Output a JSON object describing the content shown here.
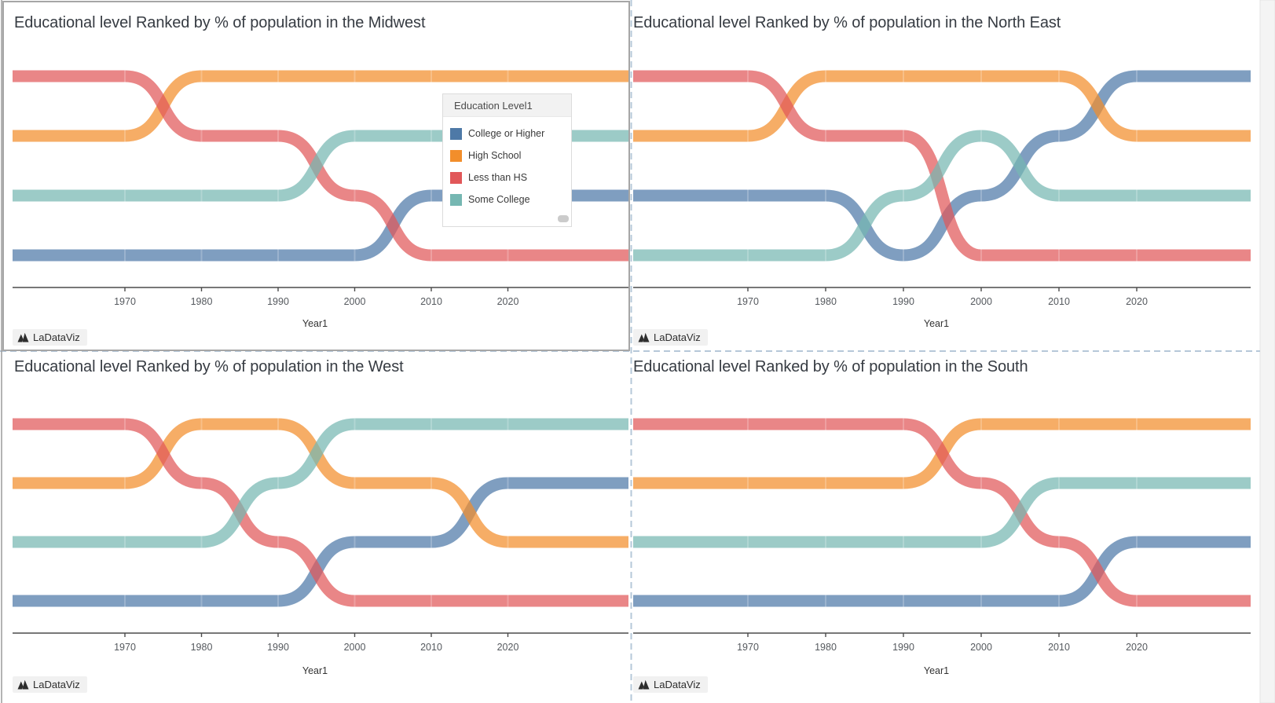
{
  "legend": {
    "title": "Education Level1",
    "items": [
      {
        "label": "College or Higher",
        "color": "#4e79a7"
      },
      {
        "label": "High School",
        "color": "#f28e2b"
      },
      {
        "label": "Less than HS",
        "color": "#e15759"
      },
      {
        "label": "Some College",
        "color": "#76b7b2"
      }
    ]
  },
  "chart_data": [
    {
      "type": "line",
      "variant": "bump-rank",
      "region": "Midwest",
      "title": "Educational level Ranked by % of population in the Midwest",
      "xlabel": "Year1",
      "watermark": "LaDataViz",
      "x": [
        1960,
        1970,
        1980,
        1990,
        2000,
        2010,
        2020,
        2030
      ],
      "x_ticks": [
        "1970",
        "1980",
        "1990",
        "2000",
        "2010",
        "2020"
      ],
      "y_encoding": "rank of % of population (1 = highest, plotted at top)",
      "ylim": [
        1,
        4
      ],
      "grid": false,
      "series": [
        {
          "name": "College or Higher",
          "color": "#4e79a7",
          "ranks": [
            4,
            4,
            4,
            4,
            4,
            3,
            3,
            3
          ]
        },
        {
          "name": "High School",
          "color": "#f28e2b",
          "ranks": [
            2,
            2,
            1,
            1,
            1,
            1,
            1,
            1
          ]
        },
        {
          "name": "Less than HS",
          "color": "#e15759",
          "ranks": [
            1,
            1,
            2,
            2,
            3,
            4,
            4,
            4
          ]
        },
        {
          "name": "Some College",
          "color": "#76b7b2",
          "ranks": [
            3,
            3,
            3,
            3,
            2,
            2,
            2,
            2
          ]
        }
      ],
      "legend_position": "overlay-right"
    },
    {
      "type": "line",
      "variant": "bump-rank",
      "region": "North East",
      "title": "Educational level Ranked by % of population in the North East",
      "xlabel": "Year1",
      "watermark": "LaDataViz",
      "x": [
        1960,
        1970,
        1980,
        1990,
        2000,
        2010,
        2020,
        2030
      ],
      "x_ticks": [
        "1970",
        "1980",
        "1990",
        "2000",
        "2010",
        "2020"
      ],
      "y_encoding": "rank of % of population (1 = highest, plotted at top)",
      "ylim": [
        1,
        4
      ],
      "grid": false,
      "series": [
        {
          "name": "College or Higher",
          "color": "#4e79a7",
          "ranks": [
            3,
            3,
            3,
            4,
            3,
            2,
            1,
            1
          ]
        },
        {
          "name": "High School",
          "color": "#f28e2b",
          "ranks": [
            2,
            2,
            1,
            1,
            1,
            1,
            2,
            2
          ]
        },
        {
          "name": "Less than HS",
          "color": "#e15759",
          "ranks": [
            1,
            1,
            2,
            2,
            4,
            4,
            4,
            4
          ]
        },
        {
          "name": "Some College",
          "color": "#76b7b2",
          "ranks": [
            4,
            4,
            4,
            3,
            2,
            3,
            3,
            3
          ]
        }
      ],
      "legend_position": "none"
    },
    {
      "type": "line",
      "variant": "bump-rank",
      "region": "West",
      "title": "Educational level Ranked by % of population in the West",
      "xlabel": "Year1",
      "watermark": "LaDataViz",
      "x": [
        1960,
        1970,
        1980,
        1990,
        2000,
        2010,
        2020,
        2030
      ],
      "x_ticks": [
        "1970",
        "1980",
        "1990",
        "2000",
        "2010",
        "2020"
      ],
      "y_encoding": "rank of % of population (1 = highest, plotted at top)",
      "ylim": [
        1,
        4
      ],
      "grid": false,
      "series": [
        {
          "name": "College or Higher",
          "color": "#4e79a7",
          "ranks": [
            4,
            4,
            4,
            4,
            3,
            3,
            2,
            2
          ]
        },
        {
          "name": "High School",
          "color": "#f28e2b",
          "ranks": [
            2,
            2,
            1,
            1,
            2,
            2,
            3,
            3
          ]
        },
        {
          "name": "Less than HS",
          "color": "#e15759",
          "ranks": [
            1,
            1,
            2,
            3,
            4,
            4,
            4,
            4
          ]
        },
        {
          "name": "Some College",
          "color": "#76b7b2",
          "ranks": [
            3,
            3,
            3,
            2,
            1,
            1,
            1,
            1
          ]
        }
      ],
      "legend_position": "none"
    },
    {
      "type": "line",
      "variant": "bump-rank",
      "region": "South",
      "title": "Educational level Ranked by % of population in the South",
      "xlabel": "Year1",
      "watermark": "LaDataViz",
      "x": [
        1960,
        1970,
        1980,
        1990,
        2000,
        2010,
        2020,
        2030
      ],
      "x_ticks": [
        "1970",
        "1980",
        "1990",
        "2000",
        "2010",
        "2020"
      ],
      "y_encoding": "rank of % of population (1 = highest, plotted at top)",
      "ylim": [
        1,
        4
      ],
      "grid": false,
      "series": [
        {
          "name": "College or Higher",
          "color": "#4e79a7",
          "ranks": [
            4,
            4,
            4,
            4,
            4,
            4,
            3,
            3
          ]
        },
        {
          "name": "High School",
          "color": "#f28e2b",
          "ranks": [
            2,
            2,
            2,
            2,
            1,
            1,
            1,
            1
          ]
        },
        {
          "name": "Less than HS",
          "color": "#e15759",
          "ranks": [
            1,
            1,
            1,
            1,
            2,
            3,
            4,
            4
          ]
        },
        {
          "name": "Some College",
          "color": "#76b7b2",
          "ranks": [
            3,
            3,
            3,
            3,
            3,
            2,
            2,
            2
          ]
        }
      ],
      "legend_position": "none"
    }
  ]
}
